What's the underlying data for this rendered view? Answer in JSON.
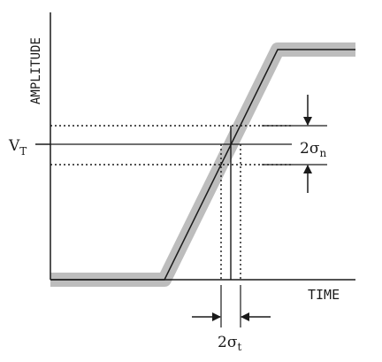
{
  "labels": {
    "y_axis": "AMPLITUDE",
    "x_axis": "TIME",
    "threshold_main": "V",
    "threshold_sub": "T",
    "noise_coef": "2",
    "noise_sigma": "σ",
    "noise_sub": "n",
    "timing_coef": "2",
    "timing_sigma": "σ",
    "timing_sub": "t"
  },
  "colors": {
    "line": "#1a1a1a",
    "noise_band": "#bdbdbd"
  }
}
